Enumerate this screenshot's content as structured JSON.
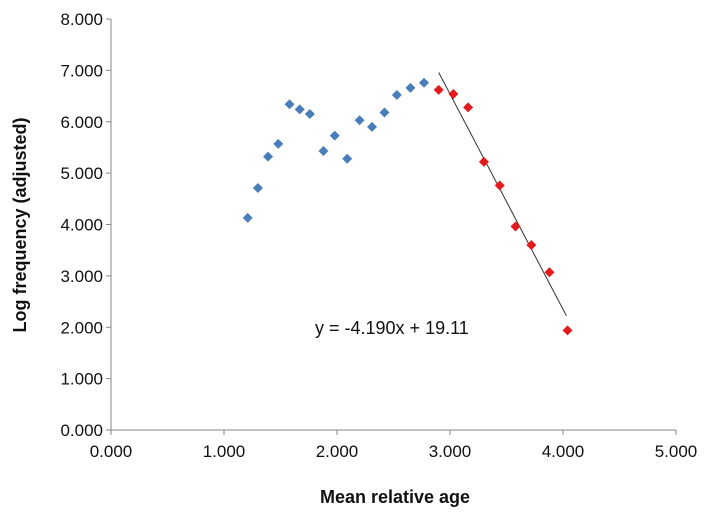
{
  "chart_data": {
    "type": "scatter",
    "xlabel": "Mean relative age",
    "ylabel": "Log frequency (adjusted)",
    "xlim": [
      0,
      5
    ],
    "ylim": [
      0,
      8
    ],
    "x_ticks": [
      "0.000",
      "1.000",
      "2.000",
      "3.000",
      "4.000",
      "5.000"
    ],
    "y_ticks": [
      "0.000",
      "1.000",
      "2.000",
      "3.000",
      "4.000",
      "5.000",
      "6.000",
      "7.000",
      "8.000"
    ],
    "grid": false,
    "legend": "none",
    "series": [
      {
        "color": "#4a7ebb",
        "marker": "diamond",
        "points": [
          {
            "x": 1.21,
            "y": 4.13
          },
          {
            "x": 1.3,
            "y": 4.71
          },
          {
            "x": 1.39,
            "y": 5.32
          },
          {
            "x": 1.48,
            "y": 5.57
          },
          {
            "x": 1.58,
            "y": 6.34
          },
          {
            "x": 1.67,
            "y": 6.24
          },
          {
            "x": 1.76,
            "y": 6.15
          },
          {
            "x": 1.88,
            "y": 5.43
          },
          {
            "x": 1.98,
            "y": 5.73
          },
          {
            "x": 2.09,
            "y": 5.28
          },
          {
            "x": 2.2,
            "y": 6.03
          },
          {
            "x": 2.31,
            "y": 5.9
          },
          {
            "x": 2.42,
            "y": 6.18
          },
          {
            "x": 2.53,
            "y": 6.52
          },
          {
            "x": 2.65,
            "y": 6.66
          },
          {
            "x": 2.77,
            "y": 6.76
          }
        ]
      },
      {
        "color": "#e41a1c",
        "marker": "diamond",
        "points": [
          {
            "x": 2.9,
            "y": 6.62
          },
          {
            "x": 3.03,
            "y": 6.54
          },
          {
            "x": 3.16,
            "y": 6.28
          },
          {
            "x": 3.3,
            "y": 5.22
          },
          {
            "x": 3.44,
            "y": 4.76
          },
          {
            "x": 3.58,
            "y": 3.96
          },
          {
            "x": 3.72,
            "y": 3.6
          },
          {
            "x": 3.88,
            "y": 3.07
          },
          {
            "x": 4.04,
            "y": 1.94
          }
        ]
      }
    ],
    "trendline": {
      "slope": -4.19,
      "intercept": 19.11,
      "x_range": [
        2.9,
        4.03
      ],
      "color": "#333333",
      "equation_label": "y = -4.190x + 19.11"
    }
  }
}
